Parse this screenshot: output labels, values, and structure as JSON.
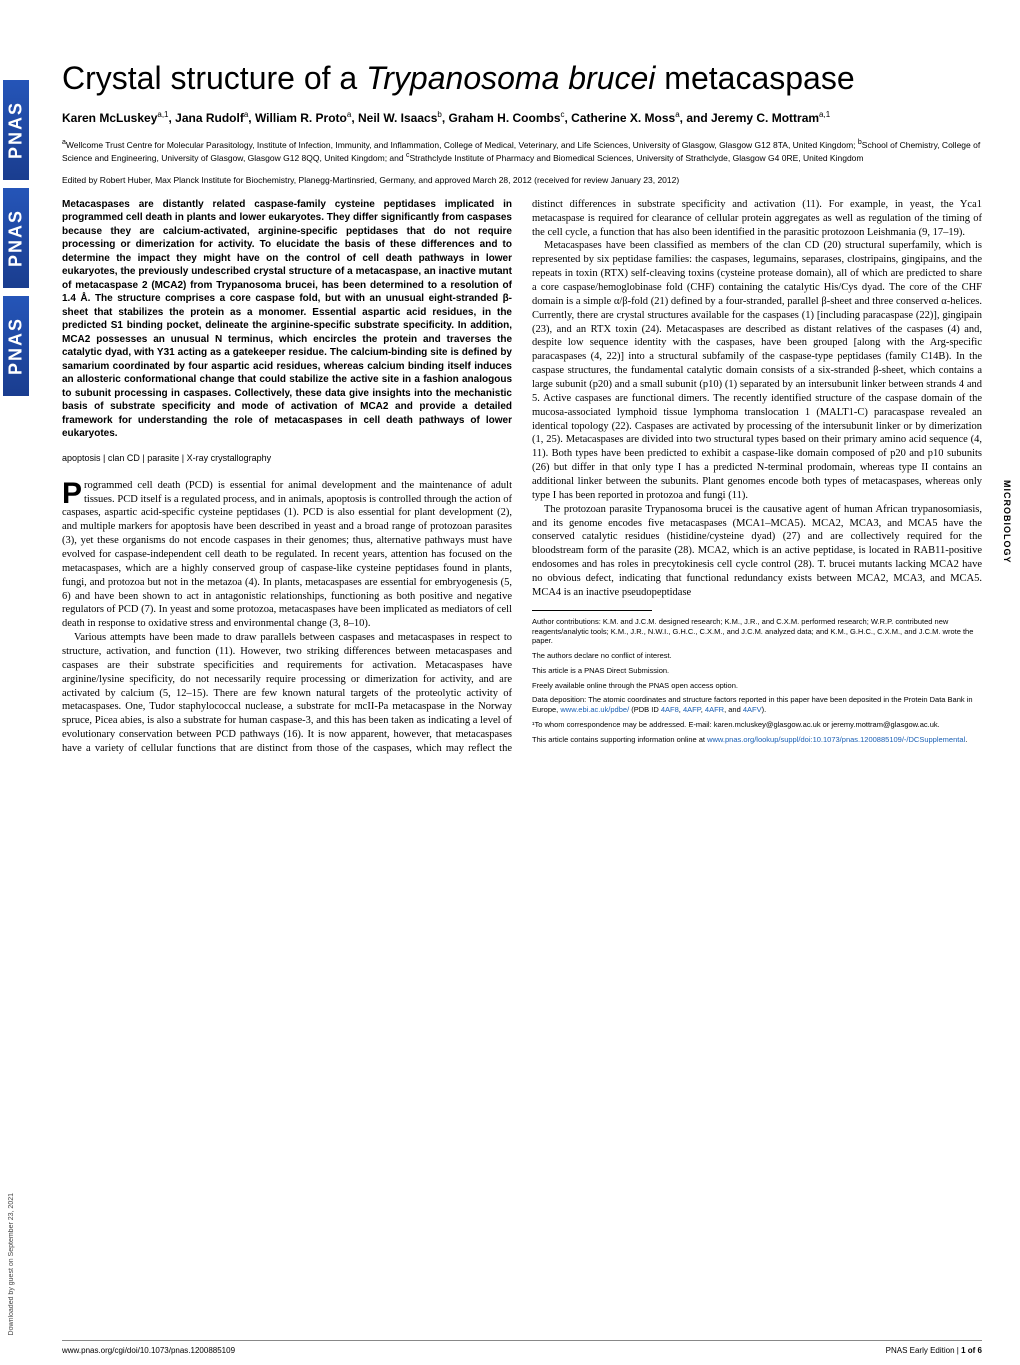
{
  "sidebar": {
    "logo_text": "PNAS",
    "download_note": "Downloaded by guest on September 23, 2021"
  },
  "side_label": "MICROBIOLOGY",
  "title_prefix": "Crystal structure of a ",
  "title_italic": "Trypanosoma brucei",
  "title_suffix": " metacaspase",
  "authors_html": "Karen McLuskey<sup>a,1</sup>, Jana Rudolf<sup>a</sup>, William R. Proto<sup>a</sup>, Neil W. Isaacs<sup>b</sup>, Graham H. Coombs<sup>c</sup>, Catherine X. Moss<sup>a</sup>, and Jeremy C. Mottram<sup>a,1</sup>",
  "affiliations_html": "<sup>a</sup>Wellcome Trust Centre for Molecular Parasitology, Institute of Infection, Immunity, and Inflammation, College of Medical, Veterinary, and Life Sciences, University of Glasgow, Glasgow G12 8TA, United Kingdom; <sup>b</sup>School of Chemistry, College of Science and Engineering, University of Glasgow, Glasgow G12 8QQ, United Kingdom; and <sup>c</sup>Strathclyde Institute of Pharmacy and Biomedical Sciences, University of Strathclyde, Glasgow G4 0RE, United Kingdom",
  "edited": "Edited by Robert Huber, Max Planck Institute for Biochemistry, Planegg-Martinsried, Germany, and approved March 28, 2012 (received for review January 23, 2012)",
  "abstract": "Metacaspases are distantly related caspase-family cysteine peptidases implicated in programmed cell death in plants and lower eukaryotes. They differ significantly from caspases because they are calcium-activated, arginine-specific peptidases that do not require processing or dimerization for activity. To elucidate the basis of these differences and to determine the impact they might have on the control of cell death pathways in lower eukaryotes, the previously undescribed crystal structure of a metacaspase, an inactive mutant of metacaspase 2 (MCA2) from Trypanosoma brucei, has been determined to a resolution of 1.4 Å. The structure comprises a core caspase fold, but with an unusual eight-stranded β-sheet that stabilizes the protein as a monomer. Essential aspartic acid residues, in the predicted S1 binding pocket, delineate the arginine-specific substrate specificity. In addition, MCA2 possesses an unusual N terminus, which encircles the protein and traverses the catalytic dyad, with Y31 acting as a gatekeeper residue. The calcium-binding site is defined by samarium coordinated by four aspartic acid residues, whereas calcium binding itself induces an allosteric conformational change that could stabilize the active site in a fashion analogous to subunit processing in caspases. Collectively, these data give insights into the mechanistic basis of substrate specificity and mode of activation of MCA2 and provide a detailed framework for understanding the role of metacaspases in cell death pathways of lower eukaryotes.",
  "keywords": "apoptosis | clan CD | parasite | X-ray crystallography",
  "body": {
    "p1_dropcap": "P",
    "p1": "rogrammed cell death (PCD) is essential for animal development and the maintenance of adult tissues. PCD itself is a regulated process, and in animals, apoptosis is controlled through the action of caspases, aspartic acid-specific cysteine peptidases (1). PCD is also essential for plant development (2), and multiple markers for apoptosis have been described in yeast and a broad range of protozoan parasites (3), yet these organisms do not encode caspases in their genomes; thus, alternative pathways must have evolved for caspase-independent cell death to be regulated. In recent years, attention has focused on the metacaspases, which are a highly conserved group of caspase-like cysteine peptidases found in plants, fungi, and protozoa but not in the metazoa (4). In plants, metacaspases are essential for embryogenesis (5, 6) and have been shown to act in antagonistic relationships, functioning as both positive and negative regulators of PCD (7). In yeast and some protozoa, metacaspases have been implicated as mediators of cell death in response to oxidative stress and environmental change (3, 8–10).",
    "p2": "Various attempts have been made to draw parallels between caspases and metacaspases in respect to structure, activation, and function (11). However, two striking differences between metacaspases and caspases are their substrate specificities and requirements for activation. Metacaspases have arginine/lysine specificity, do not necessarily require processing or dimerization for activity, and are activated by calcium (5, 12–15). There are few known natural targets of the proteolytic activity of metacaspases. One, Tudor staphylococcal nuclease, a substrate for mcII-Pa metacaspase in the Norway spruce, Picea abies, is also a substrate for human caspase-3, and this has been taken as indicating a level of evolutionary conservation between PCD pathways (16). It is now apparent, however, that metacaspases have a variety of cellular functions that are distinct from those of the caspases, which may reflect the distinct differences in substrate specificity and activation (11). For example, in yeast, the Yca1 metacaspase is required for clearance of cellular protein aggregates as well as regulation of the timing of the cell cycle, a function that has also been identified in the parasitic protozoon Leishmania (9, 17–19).",
    "p3": "Metacaspases have been classified as members of the clan CD (20) structural superfamily, which is represented by six peptidase families: the caspases, legumains, separases, clostripains, gingipains, and the repeats in toxin (RTX) self-cleaving toxins (cysteine protease domain), all of which are predicted to share a core caspase/hemoglobinase fold (CHF) containing the catalytic His/Cys dyad. The core of the CHF domain is a simple α/β-fold (21) defined by a four-stranded, parallel β-sheet and three conserved α-helices. Currently, there are crystal structures available for the caspases (1) [including paracaspase (22)], gingipain (23), and an RTX toxin (24). Metacaspases are described as distant relatives of the caspases (4) and, despite low sequence identity with the caspases, have been grouped [along with the Arg-specific paracaspases (4, 22)] into a structural subfamily of the caspase-type peptidases (family C14B). In the caspase structures, the fundamental catalytic domain consists of a six-stranded β-sheet, which contains a large subunit (p20) and a small subunit (p10) (1) separated by an intersubunit linker between strands 4 and 5. Active caspases are functional dimers. The recently identified structure of the caspase domain of the mucosa-associated lymphoid tissue lymphoma translocation 1 (MALT1-C) paracaspase revealed an identical topology (22). Caspases are activated by processing of the intersubunit linker or by dimerization (1, 25). Metacaspases are divided into two structural types based on their primary amino acid sequence (4, 11). Both types have been predicted to exhibit a caspase-like domain composed of p20 and p10 subunits (26) but differ in that only type I has a predicted N-terminal prodomain, whereas type II contains an additional linker between the subunits. Plant genomes encode both types of metacaspases, whereas only type I has been reported in protozoa and fungi (11).",
    "p4": "The protozoan parasite Trypanosoma brucei is the causative agent of human African trypanosomiasis, and its genome encodes five metacaspases (MCA1–MCA5). MCA2, MCA3, and MCA5 have the conserved catalytic residues (histidine/cysteine dyad) (27) and are collectively required for the bloodstream form of the parasite (28). MCA2, which is an active peptidase, is located in RAB11-positive endosomes and has roles in precytokinesis cell cycle control (28). T. brucei mutants lacking MCA2 have no obvious defect, indicating that functional redundancy exists between MCA2, MCA3, and MCA5. MCA4 is an inactive pseudopeptidase"
  },
  "footer_notes": {
    "contrib": "Author contributions: K.M. and J.C.M. designed research; K.M., J.R., and C.X.M. performed research; W.R.P. contributed new reagents/analytic tools; K.M., J.R., N.W.I., G.H.C., C.X.M., and J.C.M. analyzed data; and K.M., G.H.C., C.X.M., and J.C.M. wrote the paper.",
    "conflict": "The authors declare no conflict of interest.",
    "direct": "This article is a PNAS Direct Submission.",
    "open": "Freely available online through the PNAS open access option.",
    "deposition_prefix": "Data deposition: The atomic coordinates and structure factors reported in this paper have been deposited in the Protein Data Bank in Europe, ",
    "deposition_link": "www.ebi.ac.uk/pdbe/",
    "deposition_ids_prefix": " (PDB ID ",
    "pdb1": "4AF8",
    "pdb2": "4AFP",
    "pdb3": "4AFR",
    "pdb4": "4AFV",
    "deposition_suffix": ").",
    "corr_prefix": "¹To whom correspondence may be addressed. E-mail: karen.mcluskey@glasgow.ac.uk or jeremy.mottram@glasgow.ac.uk.",
    "supp_prefix": "This article contains supporting information online at ",
    "supp_link": "www.pnas.org/lookup/suppl/doi:10.1073/pnas.1200885109/-/DCSupplemental",
    "supp_suffix": "."
  },
  "page_footer": {
    "left": "www.pnas.org/cgi/doi/10.1073/pnas.1200885109",
    "right_prefix": "PNAS Early Edition",
    "right_sep": " | ",
    "right_page_bold": "1 of 6"
  },
  "colors": {
    "link": "#1a5fb4",
    "pnas_blue": "#1a3d8f"
  }
}
